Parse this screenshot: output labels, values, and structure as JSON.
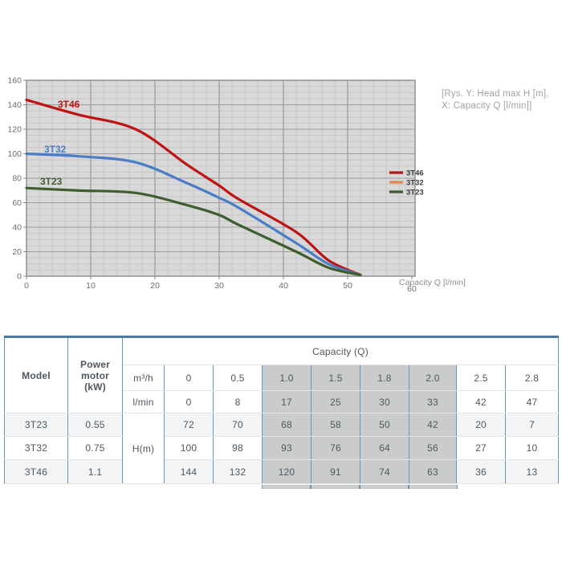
{
  "chart_data": {
    "type": "line",
    "title": "",
    "xlabel": "Capacity Q [l/min]",
    "ylabel": "Head max H [m]",
    "xlim": [
      0,
      60
    ],
    "ylim": [
      0,
      160
    ],
    "x_ticks": [
      0,
      10,
      20,
      30,
      40,
      50,
      60
    ],
    "y_ticks": [
      0,
      20,
      40,
      60,
      80,
      100,
      120,
      140,
      160
    ],
    "x_minor_step": 2,
    "y_minor_step": 5,
    "grid": true,
    "legend_position": "right-inside",
    "x": [
      0,
      8,
      17,
      25,
      30,
      33,
      42,
      47
    ],
    "curve_end": {
      "x": 52,
      "h": 1
    },
    "series": [
      {
        "name": "3T46",
        "color": "#bd1414",
        "legend_color": "#bd1414",
        "values": [
          144,
          132,
          120,
          91,
          74,
          63,
          36,
          13
        ]
      },
      {
        "name": "3T32",
        "color": "#4b7dc6",
        "legend_color": "#e0884e",
        "values": [
          100,
          98,
          93,
          76,
          64,
          56,
          27,
          10
        ]
      },
      {
        "name": "3T23",
        "color": "#3e5e2f",
        "legend_color": "#3e5e2f",
        "values": [
          72,
          70,
          68,
          58,
          50,
          42,
          20,
          7
        ]
      }
    ]
  },
  "chart": {
    "annotation_line1": "[Rys. Y: Head max H [m],",
    "annotation_line2": "X: Capacity Q [l/min]]"
  },
  "table": {
    "headers": {
      "model": "Model",
      "power": "Power motor (kW)",
      "capacity": "Capacity (Q)",
      "m3h": "m³/h",
      "lmin": "l/min",
      "hm": "H(m)"
    },
    "m3h_values": [
      "0",
      "0.5",
      "1.0",
      "1.5",
      "1.8",
      "2.0",
      "2.5",
      "2.8"
    ],
    "lmin_values": [
      "0",
      "8",
      "17",
      "25",
      "30",
      "33",
      "42",
      "47"
    ],
    "rows": [
      {
        "model": "3T23",
        "power": "0.55",
        "values": [
          "72",
          "70",
          "68",
          "58",
          "50",
          "42",
          "20",
          "7"
        ]
      },
      {
        "model": "3T32",
        "power": "0.75",
        "values": [
          "100",
          "98",
          "93",
          "76",
          "64",
          "56",
          "27",
          "10"
        ]
      },
      {
        "model": "3T46",
        "power": "1.1",
        "values": [
          "144",
          "132",
          "120",
          "91",
          "74",
          "63",
          "36",
          "13"
        ]
      }
    ],
    "colors": {
      "shaded_column_bg": "#c9ccca",
      "stripe_bg": "#f2f4f5",
      "column_border": "#6695b8",
      "top_border": "#4879a3"
    },
    "shaded_columns": [
      2,
      3,
      4,
      5
    ]
  }
}
